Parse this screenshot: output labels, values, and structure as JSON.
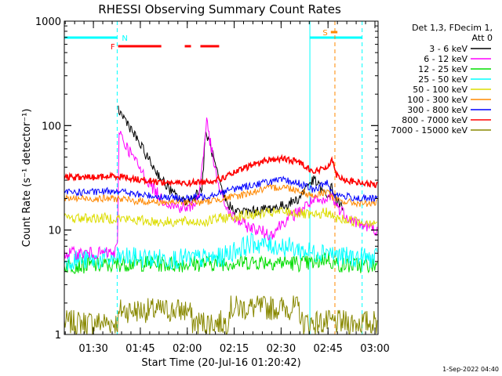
{
  "chart_data": {
    "type": "line",
    "title": "RHESSI Observing Summary Count Rates",
    "xlabel": "Start Time (20-Jul-16 01:20:42)",
    "ylabel": "Count Rate (s⁻¹ detector⁻¹)",
    "y_scale": "log",
    "ylim": [
      1,
      1000
    ],
    "y_ticks": [
      {
        "value": 1,
        "label": "1"
      },
      {
        "value": 10,
        "label": "10"
      },
      {
        "value": 100,
        "label": "100"
      },
      {
        "value": 1000,
        "label": "1000"
      }
    ],
    "x_unit": "minutes after 01:20:42",
    "xlim": [
      0,
      100.3
    ],
    "x_ticks": [
      {
        "value": 9.3,
        "label": "01:30"
      },
      {
        "value": 24.3,
        "label": "01:45"
      },
      {
        "value": 39.3,
        "label": "02:00"
      },
      {
        "value": 54.3,
        "label": "02:15"
      },
      {
        "value": 69.3,
        "label": "02:30"
      },
      {
        "value": 84.3,
        "label": "02:45"
      },
      {
        "value": 99.3,
        "label": "03:00"
      }
    ],
    "legend": {
      "position": "outside-right",
      "header": [
        "Det 1,3, FDecim 1,",
        "Att 0"
      ]
    },
    "series": [
      {
        "name": "3 - 6 keV",
        "color": "#000000",
        "x": [
          0,
          10,
          16.5,
          17,
          18,
          20,
          22,
          25,
          28,
          32,
          35,
          38,
          40,
          44,
          45.2,
          47,
          50,
          52,
          55,
          60,
          65,
          70,
          75,
          78,
          80,
          82,
          84,
          85.5,
          87,
          89,
          92,
          96,
          100
        ],
        "y": [
          null,
          null,
          null,
          150,
          130,
          110,
          85,
          60,
          42,
          28,
          22,
          19,
          19,
          25,
          87,
          60,
          25,
          18,
          15,
          15,
          16,
          17,
          20,
          28,
          30,
          25,
          20,
          26,
          19,
          16,
          null,
          null,
          null
        ]
      },
      {
        "name": "6 - 12 keV",
        "color": "#ff00ff",
        "x": [
          0,
          10,
          16,
          17,
          17.5,
          19,
          22,
          25,
          28,
          31,
          35,
          40,
          43,
          45.5,
          48,
          50,
          53,
          58,
          62,
          66,
          70,
          75,
          78,
          80,
          83,
          85.5,
          87,
          90,
          93,
          96,
          100
        ],
        "y": [
          6,
          6,
          6,
          7,
          95,
          70,
          50,
          35,
          26,
          20,
          17,
          16,
          21,
          110,
          40,
          22,
          14,
          11,
          10,
          9,
          12,
          15,
          18,
          19,
          18,
          22,
          17,
          14,
          12,
          11,
          10
        ]
      },
      {
        "name": "12 - 25 keV",
        "color": "#00dd00",
        "x": [
          0,
          10,
          16,
          18,
          25,
          35,
          45,
          55,
          65,
          75,
          80,
          84,
          86,
          90,
          100
        ],
        "y": [
          4.6,
          4.6,
          4.6,
          4.8,
          4.8,
          4.7,
          4.8,
          4.9,
          5.0,
          4.8,
          4.8,
          5.5,
          4.8,
          4.6,
          4.6
        ]
      },
      {
        "name": "25 - 50 keV",
        "color": "#00ffff",
        "x": [
          0,
          10,
          16,
          20,
          30,
          40,
          50,
          55,
          60,
          65,
          70,
          75,
          80,
          84,
          86,
          90,
          100
        ],
        "y": [
          5.2,
          5.2,
          5.3,
          5.5,
          5.3,
          5.3,
          5.4,
          6.5,
          7.5,
          7.2,
          7.0,
          6.5,
          6.0,
          6.5,
          5.8,
          5.5,
          5.3
        ]
      },
      {
        "name": "50 - 100 keV",
        "color": "#dddd00",
        "x": [
          0,
          10,
          17,
          22,
          30,
          38,
          45,
          50,
          55,
          60,
          65,
          70,
          75,
          80,
          84,
          86,
          90,
          95,
          100
        ],
        "y": [
          13,
          13,
          13,
          12.5,
          12,
          12,
          12,
          13,
          13.5,
          14,
          14.5,
          15,
          14.5,
          13.5,
          15,
          13,
          12.5,
          12,
          12
        ]
      },
      {
        "name": "100 - 300 keV",
        "color": "#ff8800",
        "x": [
          0,
          10,
          17,
          22,
          30,
          38,
          45,
          50,
          55,
          60,
          65,
          70,
          75,
          80,
          84,
          86,
          90,
          95,
          100
        ],
        "y": [
          20,
          20,
          20,
          19,
          18.5,
          18.5,
          18.5,
          20,
          21,
          23,
          25,
          26,
          24,
          21,
          24,
          20,
          18.5,
          18,
          18
        ]
      },
      {
        "name": "300 - 800 keV",
        "color": "#0000ff",
        "x": [
          0,
          10,
          17,
          22,
          30,
          38,
          45,
          50,
          55,
          60,
          65,
          70,
          75,
          80,
          84,
          86,
          90,
          95,
          100
        ],
        "y": [
          23,
          23,
          24,
          22,
          21,
          20,
          21,
          23,
          25,
          27,
          29,
          30,
          28,
          24,
          29,
          22,
          21,
          20,
          20
        ]
      },
      {
        "name": "800 - 7000 keV",
        "color": "#ff0000",
        "x": [
          0,
          10,
          17,
          22,
          30,
          38,
          45,
          50,
          55,
          60,
          65,
          70,
          75,
          80,
          84,
          85.5,
          87,
          90,
          95,
          100
        ],
        "y": [
          32,
          32,
          33,
          31,
          29,
          28,
          29,
          31,
          36,
          42,
          47,
          48,
          45,
          36,
          40,
          48,
          34,
          30,
          28,
          27
        ]
      },
      {
        "name": "7000 - 15000 keV",
        "color": "#888800",
        "x": [
          0,
          10,
          17,
          18,
          40,
          41,
          52,
          53,
          75,
          76,
          100
        ],
        "y": [
          1.3,
          1.3,
          1.3,
          1.7,
          1.7,
          1.3,
          1.3,
          1.8,
          1.8,
          1.3,
          1.3
        ]
      }
    ],
    "vertical_lines": [
      {
        "x": 16.9,
        "color": "#00ffff",
        "style": "dashed"
      },
      {
        "x": 78.5,
        "color": "#00ffff",
        "style": "solid"
      },
      {
        "x": 95.2,
        "color": "#00ffff",
        "style": "dashed"
      },
      {
        "x": 86.5,
        "color": "#ff8800",
        "style": "dashed"
      }
    ],
    "flag_bars": [
      {
        "label": "N",
        "color": "#00ffff",
        "segments": [
          [
            0,
            16.9
          ],
          [
            78.5,
            95.2
          ]
        ],
        "level": 1
      },
      {
        "label": "F",
        "color": "#ff0000",
        "segments": [
          [
            17.2,
            31
          ],
          [
            38.5,
            40.5
          ],
          [
            43.5,
            49.5
          ]
        ],
        "level": 2
      },
      {
        "label": "S",
        "color": "#ff8800",
        "segments": [
          [
            85.2,
            87.3
          ]
        ],
        "level": 3
      }
    ],
    "footer_date": "1-Sep-2022 04:40"
  }
}
